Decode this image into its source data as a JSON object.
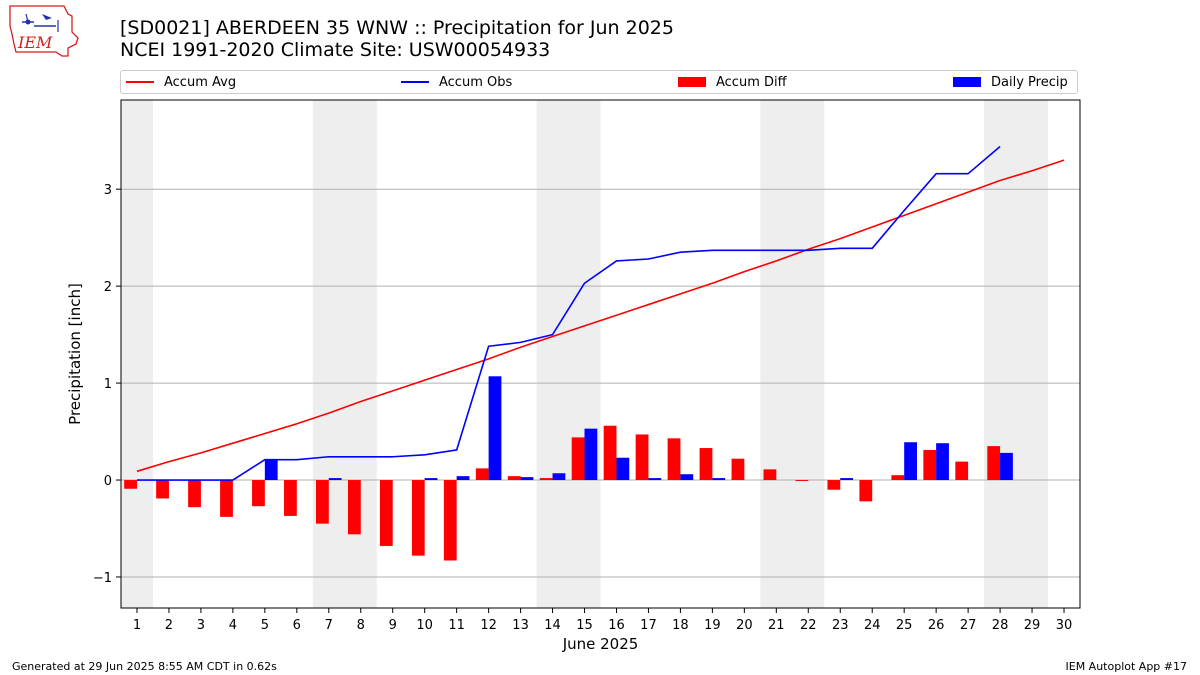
{
  "header": {
    "title": "[SD0021] ABERDEEN 35 WNW :: Precipitation for Jun 2025",
    "subtitle": "NCEI 1991-2020 Climate Site: USW00054933",
    "logo_text": "IEM"
  },
  "footer": {
    "left": "Generated at 29 Jun 2025 8:55 AM CDT in 0.62s",
    "right": "IEM Autoplot App #17"
  },
  "colors": {
    "accum_avg": "#ff0000",
    "accum_obs": "#0000ff",
    "accum_diff": "#ff0000",
    "daily_precip": "#0000ff",
    "weekend_band": "#eeeeee",
    "grid": "#b0b0b0"
  },
  "chart_data": {
    "type": "bar",
    "xlabel": "June 2025",
    "ylabel": "Precipitation [inch]",
    "xlim": [
      0.5,
      30.5
    ],
    "ylim": [
      -1.32,
      3.92
    ],
    "yticks": [
      -1,
      0,
      1,
      2,
      3
    ],
    "ytick_labels": [
      "−1",
      "0",
      "1",
      "2",
      "3"
    ],
    "x": [
      1,
      2,
      3,
      4,
      5,
      6,
      7,
      8,
      9,
      10,
      11,
      12,
      13,
      14,
      15,
      16,
      17,
      18,
      19,
      20,
      21,
      22,
      23,
      24,
      25,
      26,
      27,
      28,
      29,
      30
    ],
    "grid": "horizontal",
    "legend_position": "top",
    "weekend_bands": [
      [
        0.5,
        1.5
      ],
      [
        6.5,
        8.5
      ],
      [
        13.5,
        15.5
      ],
      [
        20.5,
        22.5
      ],
      [
        27.5,
        29.5
      ]
    ],
    "series": [
      {
        "name": "Accum Avg",
        "kind": "line",
        "x": [
          1,
          2,
          3,
          4,
          5,
          6,
          7,
          8,
          9,
          10,
          11,
          12,
          13,
          14,
          15,
          16,
          17,
          18,
          19,
          20,
          21,
          22,
          23,
          24,
          25,
          26,
          27,
          28,
          29,
          30
        ],
        "values": [
          0.09,
          0.19,
          0.28,
          0.38,
          0.48,
          0.58,
          0.69,
          0.81,
          0.92,
          1.03,
          1.14,
          1.25,
          1.37,
          1.48,
          1.59,
          1.7,
          1.81,
          1.92,
          2.03,
          2.15,
          2.26,
          2.38,
          2.49,
          2.61,
          2.73,
          2.85,
          2.97,
          3.09,
          3.19,
          3.3
        ]
      },
      {
        "name": "Accum Obs",
        "kind": "line",
        "x": [
          1,
          2,
          3,
          4,
          5,
          6,
          7,
          8,
          9,
          10,
          11,
          12,
          13,
          14,
          15,
          16,
          17,
          18,
          19,
          20,
          21,
          22,
          23,
          24,
          25,
          26,
          27,
          28
        ],
        "values": [
          0.0,
          0.0,
          0.0,
          0.0,
          0.21,
          0.21,
          0.24,
          0.24,
          0.24,
          0.26,
          0.31,
          1.38,
          1.42,
          1.5,
          2.03,
          2.26,
          2.28,
          2.35,
          2.37,
          2.37,
          2.37,
          2.37,
          2.39,
          2.39,
          2.78,
          3.16,
          3.16,
          3.44
        ]
      },
      {
        "name": "Accum Diff",
        "kind": "bar",
        "offset": -0.2,
        "x": [
          1,
          2,
          3,
          4,
          5,
          6,
          7,
          8,
          9,
          10,
          11,
          12,
          13,
          14,
          15,
          16,
          17,
          18,
          19,
          20,
          21,
          22,
          23,
          24,
          25,
          26,
          27,
          28
        ],
        "values": [
          -0.09,
          -0.19,
          -0.28,
          -0.38,
          -0.27,
          -0.37,
          -0.45,
          -0.56,
          -0.68,
          -0.78,
          -0.83,
          0.12,
          0.04,
          0.02,
          0.44,
          0.56,
          0.47,
          0.43,
          0.33,
          0.22,
          0.11,
          -0.01,
          -0.1,
          -0.22,
          0.05,
          0.31,
          0.19,
          0.35
        ]
      },
      {
        "name": "Daily Precip",
        "kind": "bar",
        "offset": 0.2,
        "x": [
          1,
          2,
          3,
          4,
          5,
          6,
          7,
          8,
          9,
          10,
          11,
          12,
          13,
          14,
          15,
          16,
          17,
          18,
          19,
          20,
          21,
          22,
          23,
          24,
          25,
          26,
          27,
          28
        ],
        "values": [
          0,
          0,
          0,
          0,
          0.21,
          0,
          0.02,
          0,
          0,
          0.02,
          0.04,
          1.07,
          0.03,
          0.07,
          0.53,
          0.23,
          0.02,
          0.06,
          0.02,
          0,
          0,
          0,
          0.02,
          0,
          0.39,
          0.38,
          0,
          0.28
        ]
      }
    ]
  }
}
